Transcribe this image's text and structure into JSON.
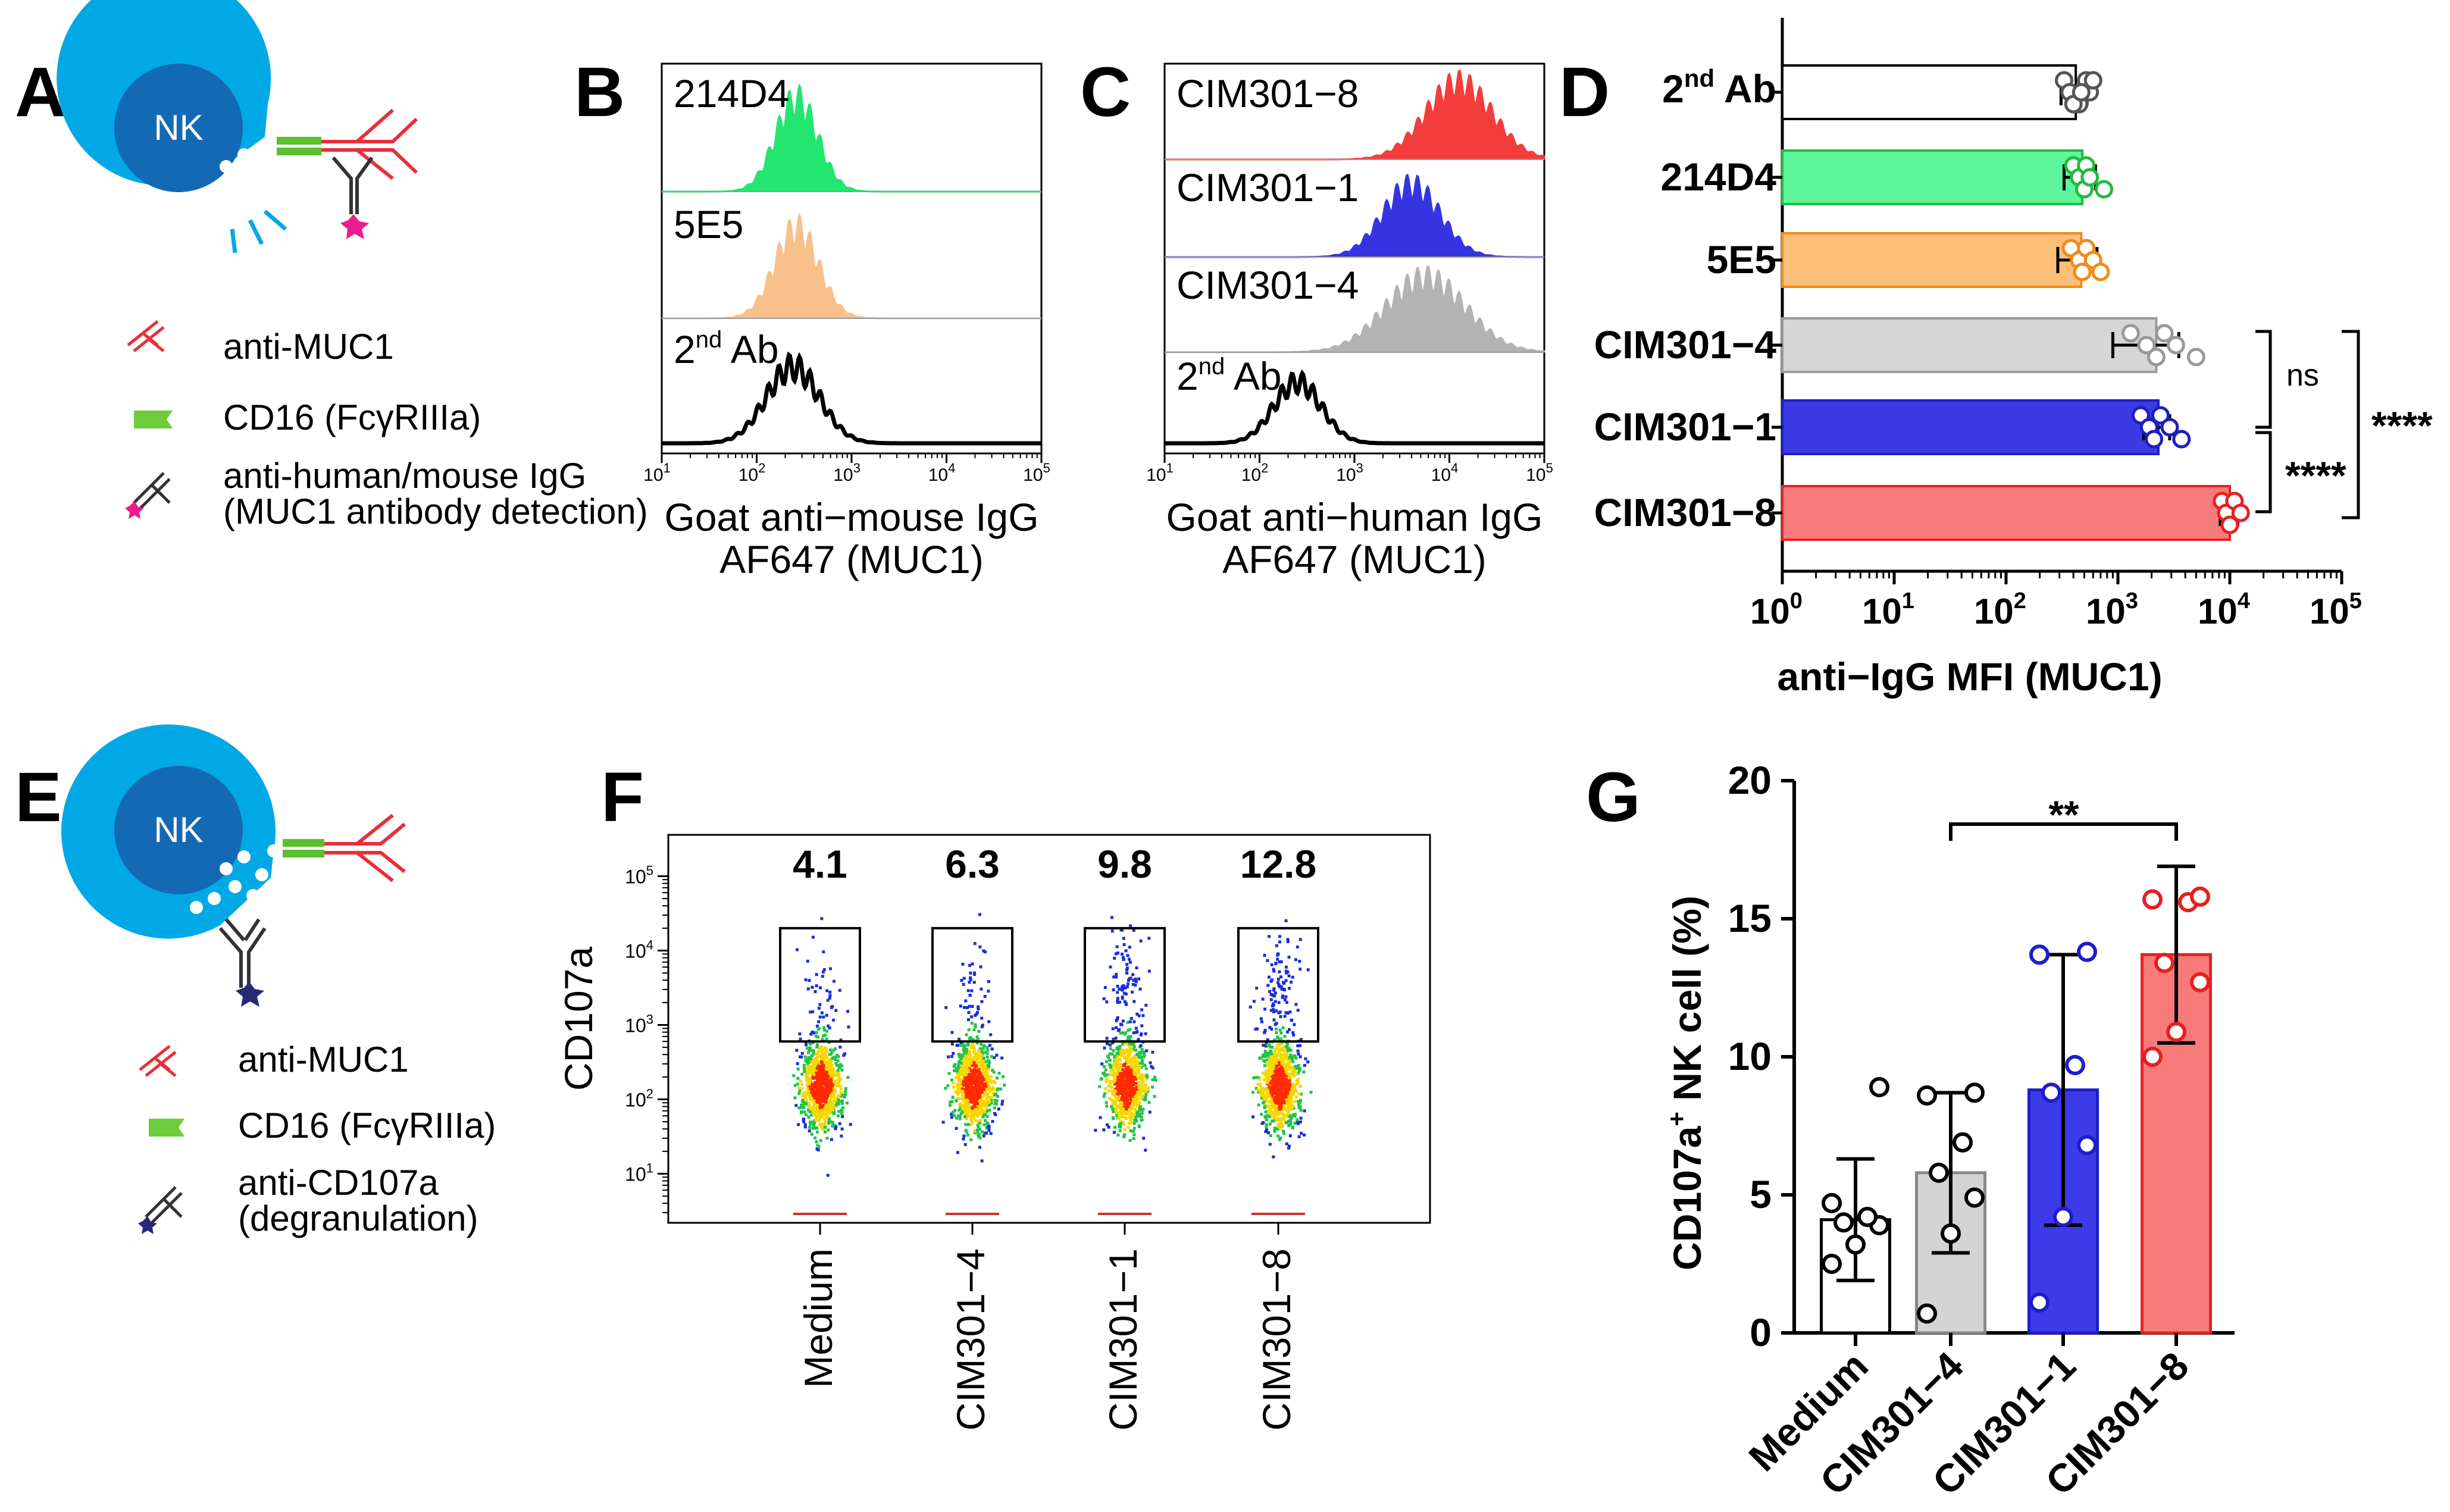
{
  "panels": {
    "A": {
      "letter": "A",
      "cell_label": "NK",
      "legend": [
        "anti-MUC1",
        "CD16 (FcγRIIIa)",
        "anti-human/mouse IgG",
        "(MUC1 antibody detection)"
      ]
    },
    "B": {
      "letter": "B",
      "tracks": [
        "214D4",
        "5E5",
        "2"
      ],
      "sup": "nd",
      "after_sup": " Ab",
      "ticks": [
        "10",
        "10",
        "10",
        "10",
        "10"
      ],
      "tick_exps": [
        "1",
        "2",
        "3",
        "4",
        "5"
      ],
      "xlabel": [
        "Goat anti−mouse IgG",
        "AF647 (MUC1)"
      ]
    },
    "C": {
      "letter": "C",
      "tracks": [
        "CIM301−8",
        "CIM301−1",
        "CIM301−4",
        "2"
      ],
      "sup": "nd",
      "after_sup": " Ab",
      "ticks": [
        "10",
        "10",
        "10",
        "10",
        "10"
      ],
      "tick_exps": [
        "1",
        "2",
        "3",
        "4",
        "5"
      ],
      "xlabel": [
        "Goat anti−human IgG",
        "AF647 (MUC1)"
      ]
    },
    "D": {
      "letter": "D",
      "cat_2nd_base": "2",
      "cat_2nd_sup": "nd",
      "cat_2nd_after": " Ab",
      "sig_ns": "ns",
      "sig_4a": "****",
      "sig_4b": "****",
      "xlabel": "anti−IgG MFI (MUC1)",
      "ticks": [
        "10",
        "10",
        "10",
        "10",
        "10",
        "10"
      ],
      "tick_exps": [
        "0",
        "1",
        "2",
        "3",
        "4",
        "5"
      ]
    },
    "E": {
      "letter": "E",
      "cell_label": "NK",
      "legend": [
        "anti-MUC1",
        "CD16 (FcγRIIIa)",
        "anti-CD107a",
        "(degranulation)"
      ]
    },
    "F": {
      "letter": "F",
      "ylabel": "CD107a",
      "gate_values": [
        "4.1",
        "6.3",
        "9.8",
        "12.8"
      ],
      "categories": [
        "Medium",
        "CIM301−4",
        "CIM301−1",
        "CIM301−8"
      ],
      "ticks": [
        "10",
        "10",
        "10",
        "10",
        "10"
      ],
      "tick_exps": [
        "5",
        "4",
        "3",
        "2",
        "1"
      ]
    },
    "G": {
      "letter": "G",
      "ylabel_main": "CD107a",
      "ylabel_sup": "+",
      "ylabel_rest": " NK cell (%)",
      "sig": "**",
      "ticks": [
        "0",
        "5",
        "10",
        "15",
        "20"
      ]
    }
  },
  "chart_data": [
    {
      "panel": "B",
      "type": "area",
      "title": "",
      "xlabel": "Goat anti−mouse IgG AF647 (MUC1)",
      "xscale": "log",
      "xlim": [
        10,
        100000
      ],
      "series": [
        {
          "name": "214D4",
          "peak_log10": 2.42,
          "width_log10": 0.22,
          "color": "#22e66e"
        },
        {
          "name": "5E5",
          "peak_log10": 2.42,
          "width_log10": 0.23,
          "color": "#f8c08a"
        },
        {
          "name": "2nd Ab",
          "peak_log10": 2.38,
          "width_log10": 0.28,
          "color": "#000000"
        }
      ]
    },
    {
      "panel": "C",
      "type": "area",
      "title": "",
      "xlabel": "Goat anti−human IgG AF647 (MUC1)",
      "xscale": "log",
      "xlim": [
        10,
        100000
      ],
      "series": [
        {
          "name": "CIM301−8",
          "peak_log10": 4.1,
          "width_log10": 0.35,
          "color": "#f33d3d"
        },
        {
          "name": "CIM301−1",
          "peak_log10": 3.6,
          "width_log10": 0.3,
          "color": "#3434e2"
        },
        {
          "name": "CIM301−4",
          "peak_log10": 3.75,
          "width_log10": 0.42,
          "color": "#b3b3b3"
        },
        {
          "name": "2nd Ab",
          "peak_log10": 2.4,
          "width_log10": 0.25,
          "color": "#000000"
        }
      ]
    },
    {
      "panel": "D",
      "type": "bar",
      "orientation": "horizontal",
      "xscale": "log",
      "xlim": [
        1,
        100000
      ],
      "xlabel": "anti−IgG MFI (MUC1)",
      "categories": [
        "2nd Ab",
        "214D4",
        "5E5",
        "CIM301−4",
        "CIM301−1",
        "CIM301−8"
      ],
      "values": [
        420,
        480,
        470,
        2200,
        2300,
        10000
      ],
      "errors": [
        110,
        150,
        180,
        1300,
        600,
        1800
      ],
      "points": [
        [
          330,
          370,
          450,
          520,
          560,
          400,
          600,
          470
        ],
        [
          400,
          450,
          500,
          520,
          560,
          750
        ],
        [
          380,
          450,
          480,
          520,
          600,
          700
        ],
        [
          1300,
          1800,
          2200,
          2600,
          3300,
          5000
        ],
        [
          1600,
          1900,
          2100,
          2400,
          2900,
          3700
        ],
        [
          8500,
          9300,
          10000,
          11000,
          12500
        ]
      ],
      "colors": [
        "#ffffff",
        "#5cf59a",
        "#fdbf78",
        "#d6d6d6",
        "#3b3be5",
        "#f87b7b"
      ],
      "point_colors": [
        "#555555",
        "#23b93f",
        "#f08a1a",
        "#999999",
        "#1e1ebe",
        "#e62020"
      ],
      "significance": [
        {
          "between": [
            "CIM301−4",
            "CIM301−1"
          ],
          "label": "ns"
        },
        {
          "between": [
            "CIM301−1",
            "CIM301−8"
          ],
          "label": "****"
        },
        {
          "between": [
            "CIM301−4",
            "CIM301−8"
          ],
          "label": "****"
        }
      ]
    },
    {
      "panel": "F",
      "type": "scatter",
      "ylabel": "CD107a",
      "yscale": "log",
      "ylim": [
        3,
        200000
      ],
      "categories": [
        "Medium",
        "CIM301−4",
        "CIM301−1",
        "CIM301−8"
      ],
      "gate_percent": [
        4.1,
        6.3,
        9.8,
        12.8
      ],
      "gate_ylim": [
        600,
        20000
      ]
    },
    {
      "panel": "G",
      "type": "bar",
      "ylabel": "CD107a+ NK cell (%)",
      "ylim": [
        0,
        20
      ],
      "categories": [
        "Medium",
        "CIM301−4",
        "CIM301−1",
        "CIM301−8"
      ],
      "values": [
        4.1,
        5.8,
        8.8,
        13.7
      ],
      "errors": [
        2.2,
        2.9,
        4.9,
        3.2
      ],
      "points": [
        [
          2.5,
          3.2,
          3.9,
          4.0,
          4.2,
          4.7,
          8.9
        ],
        [
          0.7,
          3.6,
          4.9,
          5.8,
          6.9,
          8.6,
          8.7
        ],
        [
          1.1,
          4.2,
          6.8,
          8.7,
          9.7,
          13.7,
          13.8
        ],
        [
          10.0,
          10.9,
          12.7,
          13.4,
          15.6,
          15.7,
          15.8
        ]
      ],
      "colors": [
        "#ffffff",
        "#d4d4d4",
        "#3b3bea",
        "#f87b7b"
      ],
      "point_colors": [
        "#000000",
        "#000000",
        "#1e1ec8",
        "#e62020"
      ],
      "significance": [
        {
          "between": [
            "CIM301−4",
            "CIM301−8"
          ],
          "label": "**"
        }
      ]
    }
  ]
}
